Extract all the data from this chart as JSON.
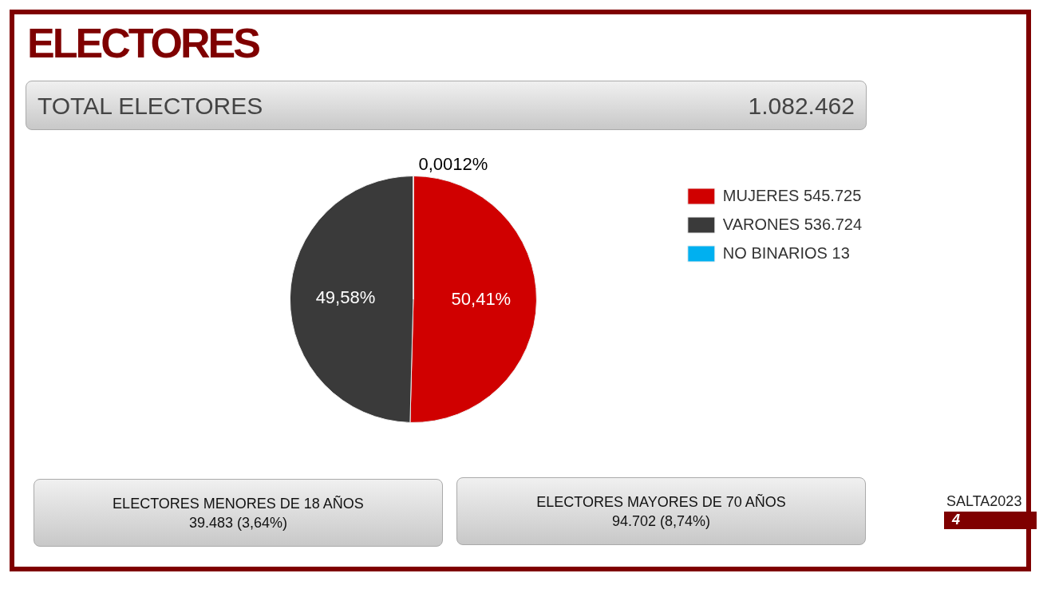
{
  "chart_data": {
    "type": "pie",
    "title": "ELECTORES",
    "categories": [
      "MUJERES 545.725",
      "VARONES 536.724",
      "NO BINARIOS 13"
    ],
    "values": [
      50.41,
      49.58,
      0.0012
    ],
    "colors": [
      "#d00000",
      "#3a3a3a",
      "#00b0f0"
    ],
    "value_labels": [
      "50,41%",
      "49,58%",
      "0,0012%"
    ],
    "legend": "right",
    "annotations": [
      "TOTAL ELECTORES",
      "1.082.462",
      "ELECTORES MENORES DE 18 AÑOS",
      "39.483 (3,64%)",
      "ELECTORES MAYORES DE 70 AÑOS",
      "94.702 (8,74%)",
      "SALTA2023",
      "4"
    ]
  }
}
